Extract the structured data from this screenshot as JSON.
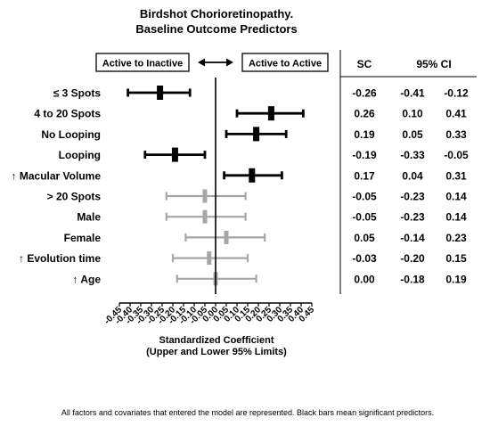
{
  "chart_data": {
    "type": "forest",
    "title_lines": [
      "Birdshot Chorioretinopathy.",
      "Baseline Outcome Predictors"
    ],
    "left_label": "Active to Inactive",
    "arrow_icon": "left-right-arrow",
    "right_label": "Active to Active",
    "table_headers": {
      "sc": "SC",
      "ci": "95% CI"
    },
    "xlabel_lines": [
      "Standardized Coefficient",
      "(Upper and Lower 95% Limits)"
    ],
    "xlim": [
      -0.45,
      0.45
    ],
    "xticks": [
      "-0.45",
      "-0.40",
      "-0.35",
      "-0.30",
      "-0.25",
      "-0.20",
      "-0.15",
      "-0.10",
      "-0.05",
      "0.00",
      "0.05",
      "0.10",
      "0.15",
      "0.20",
      "0.25",
      "0.30",
      "0.35",
      "0.40",
      "0.45"
    ],
    "colors": {
      "significant": "#000000",
      "non_significant": "#a6a6a6"
    },
    "rows": [
      {
        "label": "≤ 3 Spots",
        "sc": -0.26,
        "lo": -0.41,
        "hi": -0.12,
        "sc_text": "-0.26",
        "lo_text": "-0.41",
        "hi_text": "-0.12",
        "significant": true
      },
      {
        "label": "4 to 20 Spots",
        "sc": 0.26,
        "lo": 0.1,
        "hi": 0.41,
        "sc_text": "0.26",
        "lo_text": "0.10",
        "hi_text": "0.41",
        "significant": true
      },
      {
        "label": "No Looping",
        "sc": 0.19,
        "lo": 0.05,
        "hi": 0.33,
        "sc_text": "0.19",
        "lo_text": "0.05",
        "hi_text": "0.33",
        "significant": true
      },
      {
        "label": "Looping",
        "sc": -0.19,
        "lo": -0.33,
        "hi": -0.05,
        "sc_text": "-0.19",
        "lo_text": "-0.33",
        "hi_text": "-0.05",
        "significant": true
      },
      {
        "label": "↑ Macular Volume",
        "sc": 0.17,
        "lo": 0.04,
        "hi": 0.31,
        "sc_text": "0.17",
        "lo_text": "0.04",
        "hi_text": "0.31",
        "significant": true
      },
      {
        "label": "> 20 Spots",
        "sc": -0.05,
        "lo": -0.23,
        "hi": 0.14,
        "sc_text": "-0.05",
        "lo_text": "-0.23",
        "hi_text": "0.14",
        "significant": false
      },
      {
        "label": "Male",
        "sc": -0.05,
        "lo": -0.23,
        "hi": 0.14,
        "sc_text": "-0.05",
        "lo_text": "-0.23",
        "hi_text": "0.14",
        "significant": false
      },
      {
        "label": "Female",
        "sc": 0.05,
        "lo": -0.14,
        "hi": 0.23,
        "sc_text": "0.05",
        "lo_text": "-0.14",
        "hi_text": "0.23",
        "significant": false
      },
      {
        "label": "↑ Evolution time",
        "sc": -0.03,
        "lo": -0.2,
        "hi": 0.15,
        "sc_text": "-0.03",
        "lo_text": "-0.20",
        "hi_text": "0.15",
        "significant": false
      },
      {
        "label": "↑ Age",
        "sc": 0.0,
        "lo": -0.18,
        "hi": 0.19,
        "sc_text": "0.00",
        "lo_text": "-0.18",
        "hi_text": "0.19",
        "significant": false
      }
    ],
    "footnote": "All factors and covariates that entered the model are represented. Black bars mean significant predictors."
  }
}
